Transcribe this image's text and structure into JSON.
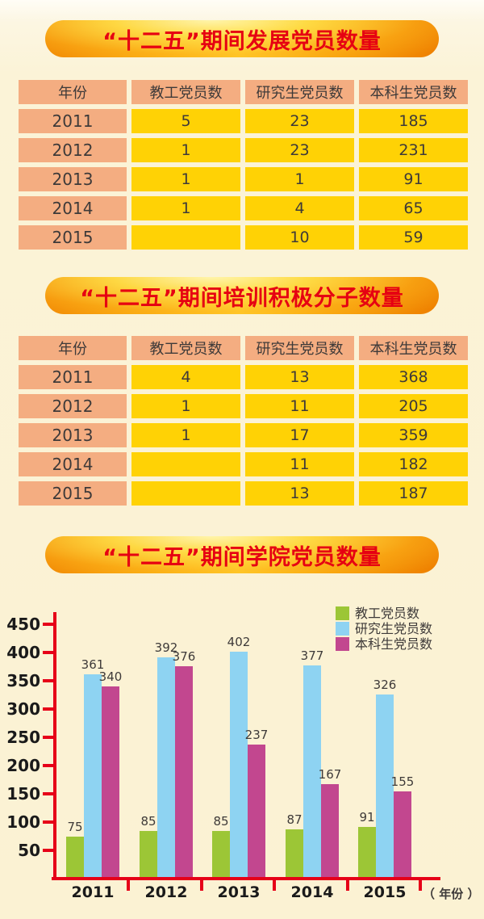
{
  "sections": [
    {
      "title": "“十二五”期间发展党员数量"
    },
    {
      "title": "“十二五”期间培训积极分子数量"
    },
    {
      "title": "“十二五”期间学院党员数量"
    }
  ],
  "tables": [
    {
      "headers": [
        "年份",
        "教工党员数",
        "研究生党员数",
        "本科生党员数"
      ],
      "rows": [
        [
          "2011",
          "5",
          "23",
          "185"
        ],
        [
          "2012",
          "1",
          "23",
          "231"
        ],
        [
          "2013",
          "1",
          "1",
          "91"
        ],
        [
          "2014",
          "1",
          "4",
          "65"
        ],
        [
          "2015",
          "",
          "10",
          "59"
        ]
      ]
    },
    {
      "headers": [
        "年份",
        "教工党员数",
        "研究生党员数",
        "本科生党员数"
      ],
      "rows": [
        [
          "2011",
          "4",
          "13",
          "368"
        ],
        [
          "2012",
          "1",
          "11",
          "205"
        ],
        [
          "2013",
          "1",
          "17",
          "359"
        ],
        [
          "2014",
          "",
          "11",
          "182"
        ],
        [
          "2015",
          "",
          "13",
          "187"
        ]
      ]
    }
  ],
  "chart_data": {
    "type": "bar",
    "title": "“十二五”期间学院党员数量",
    "categories": [
      "2011",
      "2012",
      "2013",
      "2014",
      "2015"
    ],
    "series": [
      {
        "name": "教工党员数",
        "color": "#9cc636",
        "values": [
          75,
          85,
          85,
          87,
          91
        ]
      },
      {
        "name": "研究生党员数",
        "color": "#8ed3f2",
        "values": [
          361,
          392,
          402,
          377,
          326
        ]
      },
      {
        "name": "本科生党员数",
        "color": "#c2478f",
        "values": [
          340,
          376,
          237,
          167,
          155
        ]
      }
    ],
    "ylim": [
      0,
      450
    ],
    "ytick_step": 50,
    "yticks": [
      50,
      100,
      150,
      200,
      250,
      300,
      350,
      400,
      450
    ],
    "xlabel": "（ 年份 ）",
    "axis_color": "#e60018",
    "value_label_color": "#3e3a39",
    "legend_position": "top-right",
    "grid": false
  },
  "colors": {
    "banner_text": "#e60012",
    "table_header_bg": "#f4ad81",
    "table_value_bg": "#ffd205",
    "text_dark": "#3e3a39",
    "background": "#fbf3d7"
  }
}
